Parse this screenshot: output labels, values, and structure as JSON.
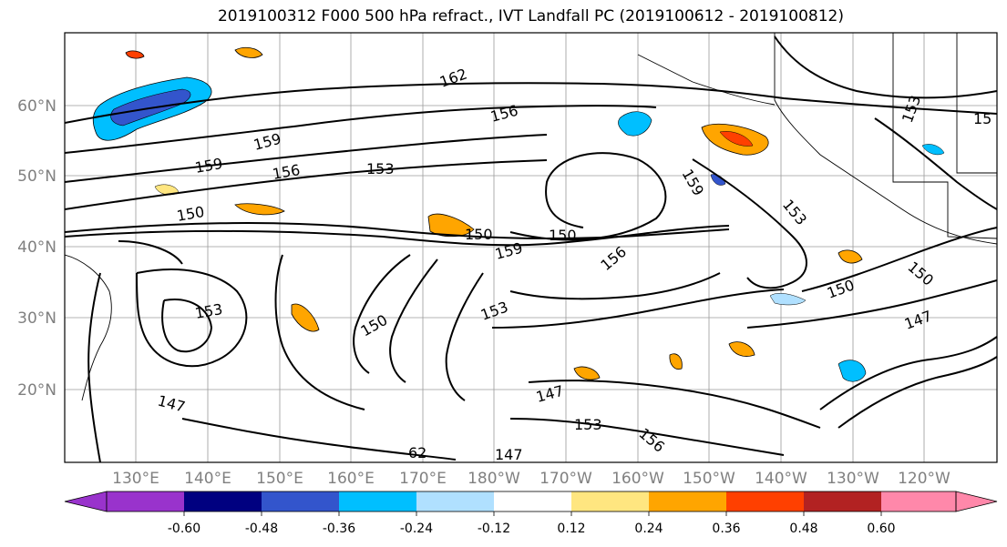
{
  "title": "2019100312 F000 500 hPa refract., IVT Landfall PC (2019100612 - 2019100812)",
  "lat_labels": [
    "60°N",
    "50°N",
    "40°N",
    "30°N",
    "20°N"
  ],
  "lon_labels": [
    "130°E",
    "140°E",
    "150°E",
    "160°E",
    "170°E",
    "180°W",
    "170°W",
    "160°W",
    "150°W",
    "140°W",
    "130°W",
    "120°W"
  ],
  "contour_labels": [
    "162",
    "156",
    "159",
    "153",
    "150",
    "147",
    "156",
    "153",
    "153",
    "150",
    "150",
    "156",
    "159",
    "147",
    "62",
    "147",
    "156",
    "150",
    "153",
    "153",
    "147",
    "150",
    "159",
    "150",
    "15",
    "153",
    "159"
  ],
  "colorbar": {
    "ticks": [
      "-0.60",
      "-0.48",
      "-0.36",
      "-0.24",
      "-0.12",
      "0.12",
      "0.24",
      "0.36",
      "0.48",
      "0.60"
    ],
    "colors": [
      "#9933cc",
      "#000080",
      "#3355cc",
      "#00bfff",
      "#b0e0ff",
      "#ffffff",
      "#ffe680",
      "#ffa500",
      "#ff4000",
      "#b22222",
      "#ff88aa"
    ]
  },
  "map": {
    "type": "contour-map",
    "contour_field": "500 hPa refractivity",
    "shaded_field": "IVT Landfall PC",
    "lat_range": [
      10,
      70
    ],
    "lon_range": [
      120,
      245
    ]
  }
}
